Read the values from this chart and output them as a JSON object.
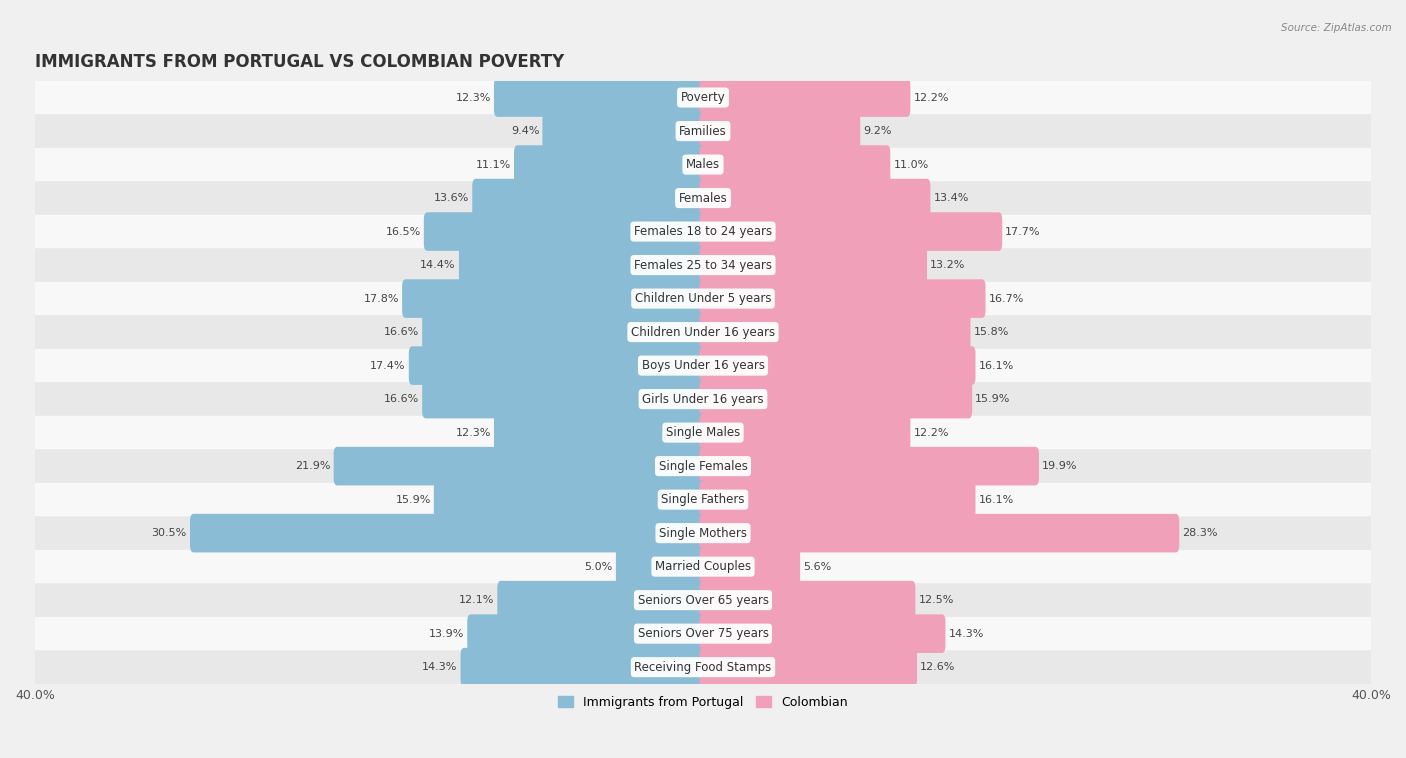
{
  "title": "IMMIGRANTS FROM PORTUGAL VS COLOMBIAN POVERTY",
  "source": "Source: ZipAtlas.com",
  "categories": [
    "Poverty",
    "Families",
    "Males",
    "Females",
    "Females 18 to 24 years",
    "Females 25 to 34 years",
    "Children Under 5 years",
    "Children Under 16 years",
    "Boys Under 16 years",
    "Girls Under 16 years",
    "Single Males",
    "Single Females",
    "Single Fathers",
    "Single Mothers",
    "Married Couples",
    "Seniors Over 65 years",
    "Seniors Over 75 years",
    "Receiving Food Stamps"
  ],
  "portugal_values": [
    12.3,
    9.4,
    11.1,
    13.6,
    16.5,
    14.4,
    17.8,
    16.6,
    17.4,
    16.6,
    12.3,
    21.9,
    15.9,
    30.5,
    5.0,
    12.1,
    13.9,
    14.3
  ],
  "colombian_values": [
    12.2,
    9.2,
    11.0,
    13.4,
    17.7,
    13.2,
    16.7,
    15.8,
    16.1,
    15.9,
    12.2,
    19.9,
    16.1,
    28.3,
    5.6,
    12.5,
    14.3,
    12.6
  ],
  "portugal_color": "#8bbcd6",
  "colombian_color": "#f0a0b8",
  "portugal_label": "Immigrants from Portugal",
  "colombian_label": "Colombian",
  "xlim": 40.0,
  "bar_height": 0.72,
  "bg_color": "#f0f0f0",
  "row_color_light": "#f8f8f8",
  "row_color_dark": "#e8e8e8",
  "label_fontsize": 8.5,
  "value_fontsize": 8.0,
  "title_fontsize": 12
}
